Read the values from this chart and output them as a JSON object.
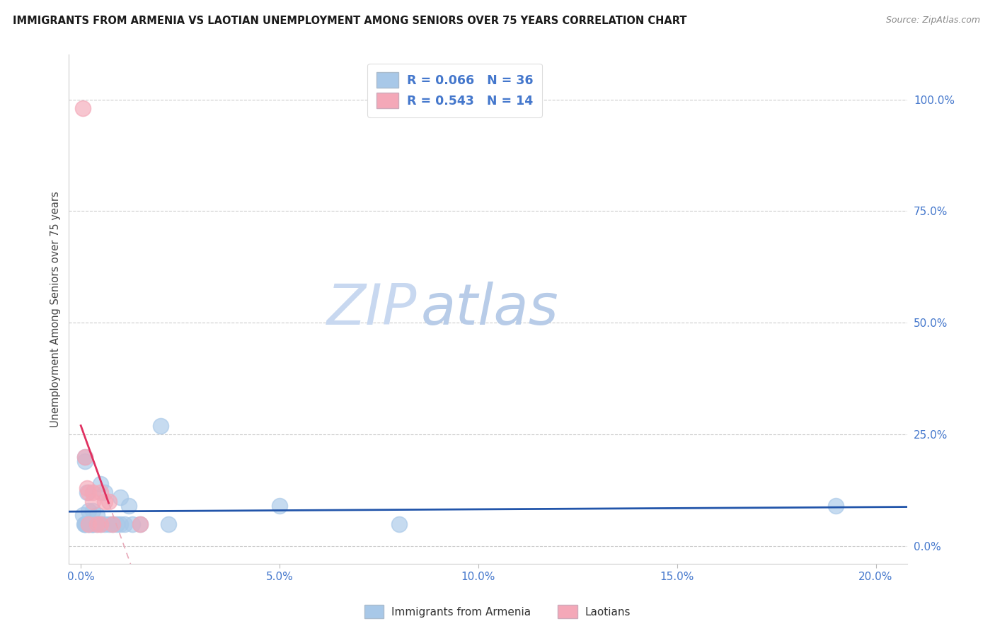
{
  "title": "IMMIGRANTS FROM ARMENIA VS LAOTIAN UNEMPLOYMENT AMONG SENIORS OVER 75 YEARS CORRELATION CHART",
  "source": "Source: ZipAtlas.com",
  "xlabel_ticks": [
    "0.0%",
    "5.0%",
    "10.0%",
    "15.0%",
    "20.0%"
  ],
  "xlabel_vals": [
    0.0,
    0.05,
    0.1,
    0.15,
    0.2
  ],
  "ylabel_ticks": [
    "0.0%",
    "25.0%",
    "50.0%",
    "75.0%",
    "100.0%"
  ],
  "ylabel_vals": [
    0.0,
    0.25,
    0.5,
    0.75,
    1.0
  ],
  "xlim": [
    -0.003,
    0.208
  ],
  "ylim": [
    -0.04,
    1.1
  ],
  "legend_armenia": "Immigrants from Armenia",
  "legend_laotians": "Laotians",
  "R_armenia": "0.066",
  "N_armenia": "36",
  "R_laotians": "0.543",
  "N_laotians": "14",
  "color_armenia": "#a8c8e8",
  "color_laotians": "#f4a8b8",
  "trendline_armenia_color": "#2255aa",
  "trendline_laotians_solid_color": "#e03060",
  "trendline_laotians_dashed_color": "#e8a8b8",
  "watermark_zip_color": "#c8d8f0",
  "watermark_atlas_color": "#b8cce8",
  "armenia_x": [
    0.0005,
    0.0008,
    0.001,
    0.001,
    0.001,
    0.0012,
    0.0015,
    0.002,
    0.002,
    0.002,
    0.0025,
    0.003,
    0.003,
    0.003,
    0.003,
    0.004,
    0.004,
    0.005,
    0.005,
    0.006,
    0.006,
    0.007,
    0.008,
    0.009,
    0.01,
    0.01,
    0.011,
    0.012,
    0.013,
    0.015,
    0.02,
    0.022,
    0.05,
    0.08,
    0.19,
    0.001
  ],
  "armenia_y": [
    0.07,
    0.05,
    0.2,
    0.05,
    0.05,
    0.05,
    0.12,
    0.05,
    0.08,
    0.05,
    0.05,
    0.05,
    0.05,
    0.08,
    0.05,
    0.07,
    0.05,
    0.14,
    0.05,
    0.12,
    0.05,
    0.05,
    0.05,
    0.05,
    0.11,
    0.05,
    0.05,
    0.09,
    0.05,
    0.05,
    0.27,
    0.05,
    0.09,
    0.05,
    0.09,
    0.19
  ],
  "laotians_x": [
    0.0005,
    0.001,
    0.0015,
    0.002,
    0.002,
    0.003,
    0.003,
    0.004,
    0.005,
    0.005,
    0.006,
    0.007,
    0.008,
    0.015
  ],
  "laotians_y": [
    0.98,
    0.2,
    0.13,
    0.05,
    0.12,
    0.12,
    0.1,
    0.05,
    0.05,
    0.12,
    0.1,
    0.1,
    0.05,
    0.05
  ],
  "trend_armenia_x0": -0.003,
  "trend_armenia_x1": 0.208,
  "trend_laotian_solid_x0": 0.0,
  "trend_laotian_solid_x1": 0.007,
  "trend_laotian_dashed_x0": 0.007,
  "trend_laotian_dashed_x1": 0.038
}
